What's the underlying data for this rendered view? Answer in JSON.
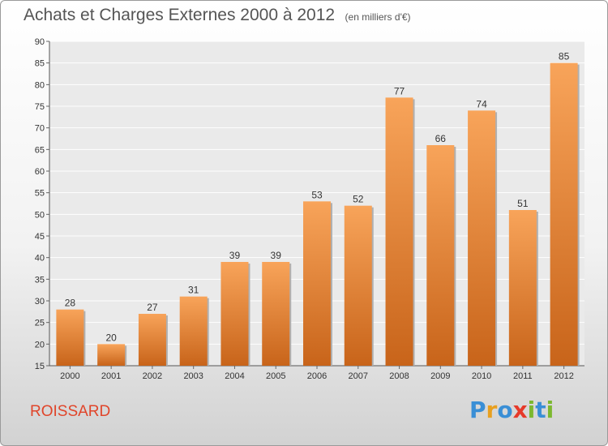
{
  "header": {
    "title": "Achats et Charges Externes 2000 à 2012",
    "subtitle": "(en milliers d'€)"
  },
  "footer": {
    "commune": "ROISSARD",
    "logo_letters": [
      "P",
      "r",
      "o",
      "x",
      "i",
      "t",
      "i"
    ],
    "logo_colors": [
      "#3a8fd6",
      "#e8a020",
      "#3a8fd6",
      "#e63a2a",
      "#7cb82f",
      "#3a8fd6",
      "#7cb82f"
    ]
  },
  "chart_data": {
    "type": "bar",
    "categories": [
      "2000",
      "2001",
      "2002",
      "2003",
      "2004",
      "2005",
      "2006",
      "2007",
      "2008",
      "2009",
      "2010",
      "2011",
      "2012"
    ],
    "values": [
      28,
      20,
      27,
      31,
      39,
      39,
      53,
      52,
      77,
      66,
      74,
      51,
      85
    ],
    "ylim": [
      15,
      90
    ],
    "yticks": [
      15,
      20,
      25,
      30,
      35,
      40,
      45,
      50,
      55,
      60,
      65,
      70,
      75,
      80,
      85,
      90
    ],
    "grid": true,
    "bar_color_top": "#f8a45a",
    "bar_color_bottom": "#c8641a"
  }
}
